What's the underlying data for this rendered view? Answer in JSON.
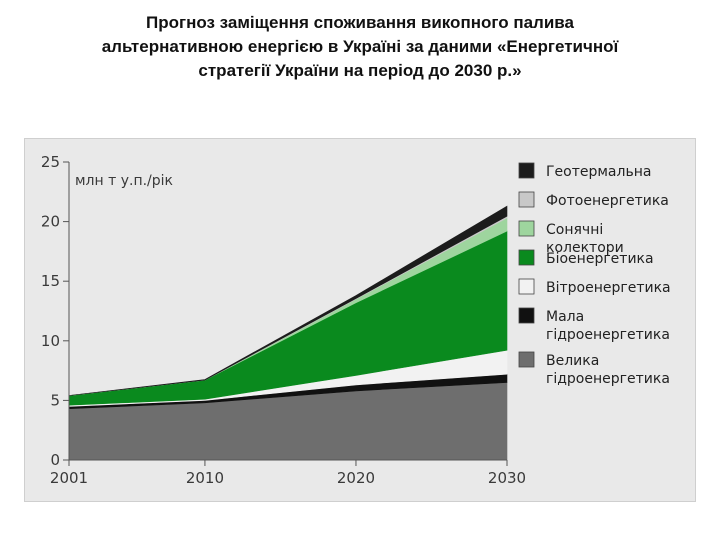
{
  "title_lines": [
    "Прогноз заміщення споживання викопного палива",
    "альтернативною енергією в Україні за даними «Енергетичної",
    "стратегії України на період до 2030 р.»"
  ],
  "chart_data": {
    "type": "area",
    "stacked": true,
    "title": "Прогноз заміщення споживання викопного палива альтернативною енергією в Україні за даними «Енергетичної стратегії України на період до 2030 р.»",
    "ylabel": "млн т у.п./рік",
    "xlabel": "",
    "x": [
      2001,
      2010,
      2020,
      2030
    ],
    "x_tick_labels": [
      "2001",
      "2010",
      "2020",
      "2030"
    ],
    "ylim": [
      0,
      25
    ],
    "y_ticks": [
      0,
      5,
      10,
      15,
      20,
      25
    ],
    "grid": false,
    "legend_position": "right",
    "series": [
      {
        "name": "Велика гідроенергетика",
        "color": "#6e6e6e",
        "values": [
          4.3,
          4.8,
          5.8,
          6.5
        ]
      },
      {
        "name": "Мала гідроенергетика",
        "color": "#111111",
        "values": [
          0.2,
          0.2,
          0.5,
          0.7
        ]
      },
      {
        "name": "Вітроенергетика",
        "color": "#f2f2f2",
        "values": [
          0.1,
          0.1,
          0.8,
          2.0
        ]
      },
      {
        "name": "Біоенергетика",
        "color": "#0a8a1e",
        "values": [
          0.8,
          1.6,
          6.1,
          10.0
        ]
      },
      {
        "name": "Сонячні колектори",
        "color": "#9ed59e",
        "values": [
          0.0,
          0.0,
          0.3,
          1.1
        ]
      },
      {
        "name": "Фотоенергетика",
        "color": "#c8c8c8",
        "values": [
          0.0,
          0.0,
          0.05,
          0.15
        ]
      },
      {
        "name": "Геотермальна",
        "color": "#1c1c1c",
        "values": [
          0.0,
          0.05,
          0.25,
          0.85
        ]
      }
    ]
  }
}
